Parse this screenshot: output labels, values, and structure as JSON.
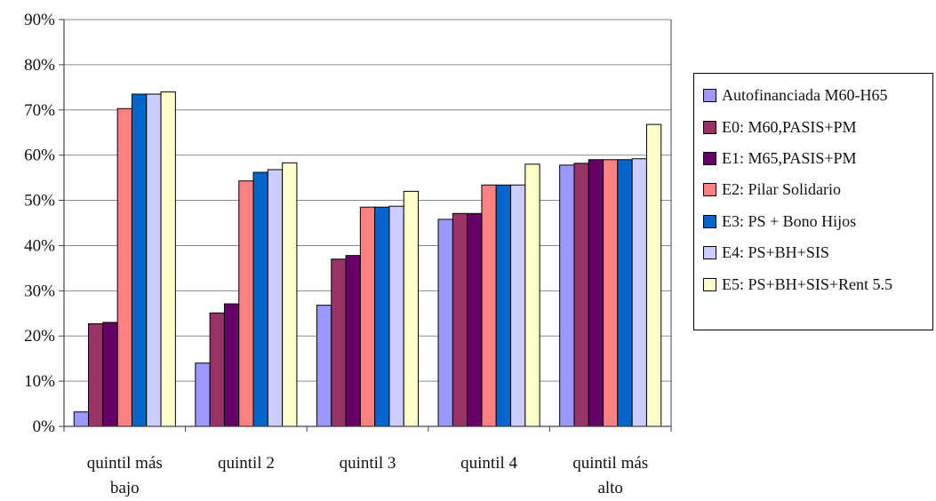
{
  "chart_data": {
    "type": "bar",
    "title": "",
    "xlabel": "",
    "ylabel": "",
    "ylim": [
      0,
      90
    ],
    "y_ticks": [
      "0%",
      "10%",
      "20%",
      "30%",
      "40%",
      "50%",
      "60%",
      "70%",
      "80%",
      "90%"
    ],
    "y_tick_values": [
      0,
      10,
      20,
      30,
      40,
      50,
      60,
      70,
      80,
      90
    ],
    "grid": "horizontal",
    "legend_position": "right",
    "categories": [
      [
        "quintil más",
        "bajo"
      ],
      [
        "quintil 2"
      ],
      [
        "quintil 3"
      ],
      [
        "quintil 4"
      ],
      [
        "quintil más",
        "alto"
      ]
    ],
    "series": [
      {
        "name": "Autofinanciada M60-H65",
        "color": "#9999ff",
        "values": [
          3.2,
          14.0,
          26.8,
          45.8,
          57.8
        ]
      },
      {
        "name": "E0: M60,PASIS+PM",
        "color": "#993366",
        "values": [
          22.7,
          25.1,
          37.0,
          47.1,
          58.2
        ]
      },
      {
        "name": "E1: M65,PASIS+PM",
        "color": "#660066",
        "values": [
          23.0,
          27.1,
          37.8,
          47.1,
          59.0
        ]
      },
      {
        "name": "E2: Pilar Solidario",
        "color": "#ff8080",
        "values": [
          70.3,
          54.3,
          48.5,
          53.4,
          59.0
        ]
      },
      {
        "name": "E3: PS + Bono Hijos",
        "color": "#0066cc",
        "values": [
          73.5,
          56.2,
          48.5,
          53.4,
          59.0
        ]
      },
      {
        "name": "E4: PS+BH+SIS",
        "color": "#ccccff",
        "values": [
          73.5,
          56.8,
          48.7,
          53.4,
          59.2
        ]
      },
      {
        "name": "E5: PS+BH+SIS+Rent 5.5",
        "color": "#ffffcc",
        "values": [
          74.0,
          58.3,
          52.0,
          58.0,
          66.8
        ]
      }
    ]
  }
}
